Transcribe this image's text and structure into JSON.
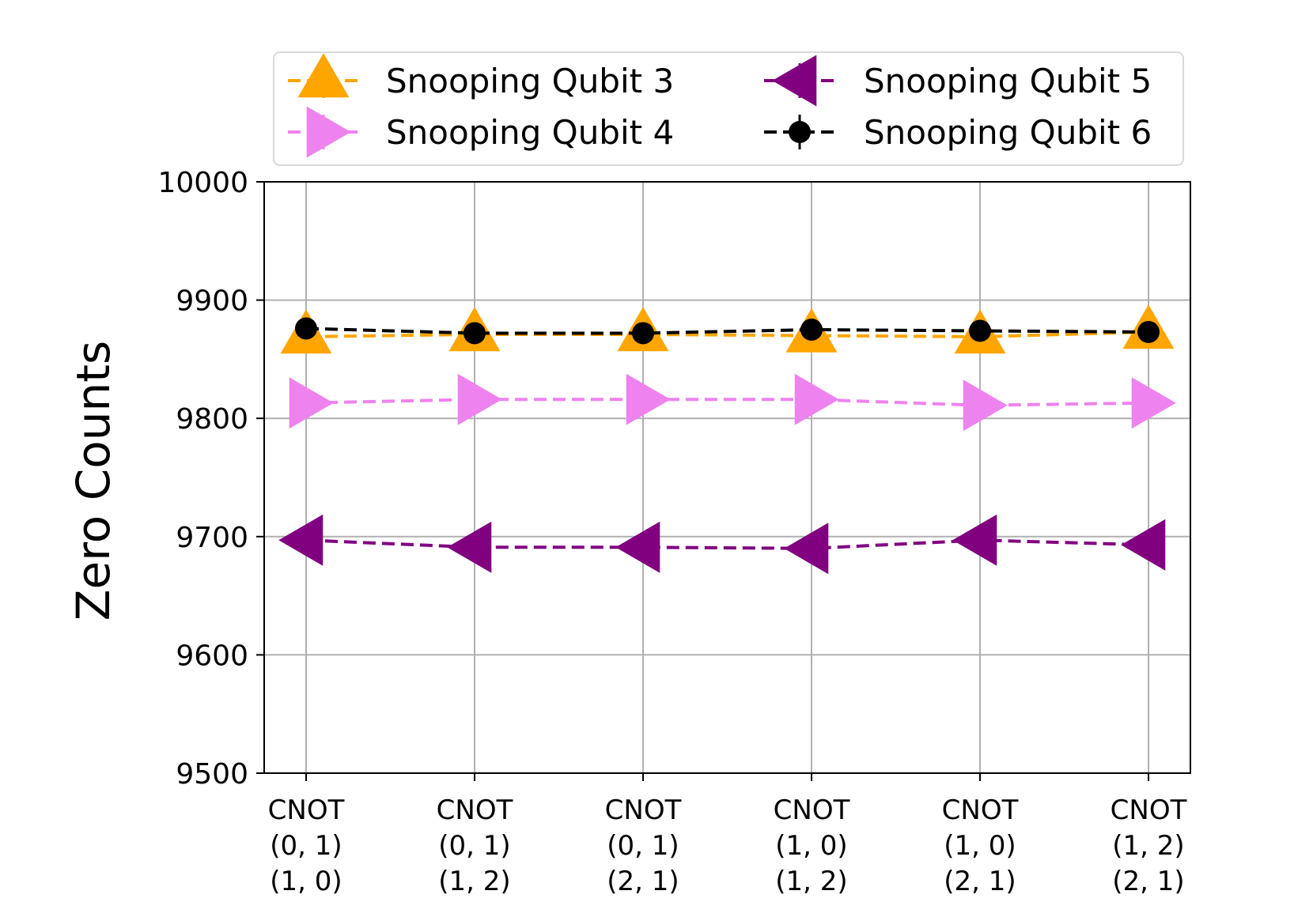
{
  "chart_data": {
    "type": "line",
    "xlabel": "",
    "ylabel": "Zero Counts",
    "ylim": [
      9500,
      10000
    ],
    "yticks": [
      9500,
      9600,
      9700,
      9800,
      9900,
      10000
    ],
    "grid": true,
    "legend_position": "top",
    "categories": [
      [
        "CNOT",
        "(0, 1)",
        "(1, 0)"
      ],
      [
        "CNOT",
        "(0, 1)",
        "(1, 2)"
      ],
      [
        "CNOT",
        "(0, 1)",
        "(2, 1)"
      ],
      [
        "CNOT",
        "(1, 0)",
        "(1, 2)"
      ],
      [
        "CNOT",
        "(1, 0)",
        "(2, 1)"
      ],
      [
        "CNOT",
        "(1, 2)",
        "(2, 1)"
      ]
    ],
    "series": [
      {
        "name": "Snooping Qubit 3",
        "color": "#ffa500",
        "marker": "triangle-up",
        "values": [
          9869,
          9871,
          9871,
          9870,
          9869,
          9873
        ],
        "errors": [
          6,
          6,
          6,
          6,
          6,
          6
        ]
      },
      {
        "name": "Snooping Qubit 4",
        "color": "#ee82ee",
        "marker": "triangle-right",
        "values": [
          9813,
          9816,
          9816,
          9816,
          9811,
          9813
        ],
        "errors": [
          7,
          7,
          7,
          7,
          7,
          7
        ]
      },
      {
        "name": "Snooping Qubit 5",
        "color": "#800080",
        "marker": "triangle-left",
        "values": [
          9697,
          9691,
          9691,
          9690,
          9697,
          9693
        ],
        "errors": [
          12,
          12,
          13,
          13,
          12,
          12
        ]
      },
      {
        "name": "Snooping Qubit 6",
        "color": "#000000",
        "marker": "circle",
        "values": [
          9876,
          9872,
          9872,
          9875,
          9874,
          9873
        ],
        "errors": [
          5,
          5,
          5,
          5,
          5,
          5
        ]
      }
    ]
  }
}
